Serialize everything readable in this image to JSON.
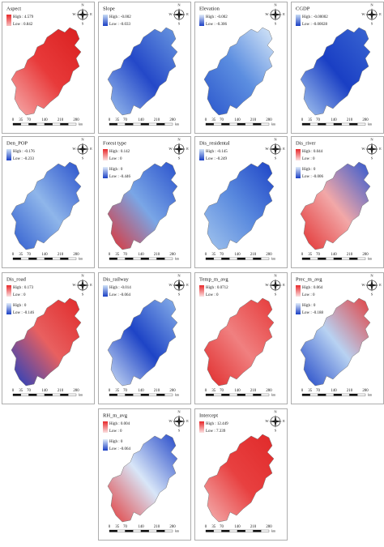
{
  "compass": [
    "N",
    "E",
    "S",
    "W"
  ],
  "scale_bar": {
    "labels": [
      "0",
      "35",
      "70",
      "140",
      "210",
      "280"
    ],
    "unit": "km"
  },
  "panels": [
    {
      "title": "Aspect",
      "legend": [
        {
          "high": "High : 4.579",
          "low": "Low : 0.842",
          "colors": [
            "#e8282a",
            "#f7c0c0"
          ]
        }
      ],
      "map_colors": [
        "#f6b0b0",
        "#e83a3a",
        "#d92020"
      ]
    },
    {
      "title": "Slope",
      "legend": [
        {
          "high": "High : -0.002",
          "low": "Low : -0.033",
          "colors": [
            "#c8dcf4",
            "#1a3fc4"
          ]
        }
      ],
      "map_colors": [
        "#9cc0ee",
        "#2448c8",
        "#6a98e0"
      ]
    },
    {
      "title": "Elevation",
      "legend": [
        {
          "high": "High : -0.002",
          "low": "Low : -0.306",
          "colors": [
            "#e4eefa",
            "#1a3fc4"
          ]
        }
      ],
      "map_colors": [
        "#2a55cc",
        "#5c8ee0",
        "#d8e8f8"
      ]
    },
    {
      "title": "CGDP",
      "legend": [
        {
          "high": "High : -0.00002",
          "low": "Low : -0.00028",
          "colors": [
            "#c8dcf4",
            "#1a3fc4"
          ]
        }
      ],
      "map_colors": [
        "#a8c8f0",
        "#1a3fc4",
        "#3a66d2"
      ]
    },
    {
      "title": "Den_POP",
      "legend": [
        {
          "high": "High : -0.176",
          "low": "Low : -0.233",
          "colors": [
            "#d0e2f6",
            "#1a3fc4"
          ]
        }
      ],
      "map_colors": [
        "#2f5ccf",
        "#8fb6ea",
        "#2a52cc"
      ]
    },
    {
      "title": "Forest type",
      "legend": [
        {
          "high": "High : 0.142",
          "low": "Low : 0",
          "colors": [
            "#e8282a",
            "#fbe0e0"
          ]
        },
        {
          "high": "High : 0",
          "low": "Low : -0.446",
          "colors": [
            "#e0ecfa",
            "#1a3fc4"
          ]
        }
      ],
      "map_colors": [
        "#e23030",
        "#7aa6e6",
        "#2a52cc"
      ]
    },
    {
      "title": "Dis_residental",
      "legend": [
        {
          "high": "High : -0.145",
          "low": "Low : -0.249",
          "colors": [
            "#d0e2f6",
            "#1a3fc4"
          ]
        }
      ],
      "map_colors": [
        "#a4c6ee",
        "#5a8ade",
        "#1e44c6"
      ]
    },
    {
      "title": "Dis_river",
      "legend": [
        {
          "high": "High : 0.044",
          "low": "Low : 0",
          "colors": [
            "#e8282a",
            "#fbe0e0"
          ]
        },
        {
          "high": "High : 0",
          "low": "Low : -0.006",
          "colors": [
            "#e0ecfa",
            "#1a3fc4"
          ]
        }
      ],
      "map_colors": [
        "#e23030",
        "#f2a8a8",
        "#3058d0"
      ]
    },
    {
      "title": "Dis_road",
      "legend": [
        {
          "high": "High : 0.173",
          "low": "Low : 0",
          "colors": [
            "#e8282a",
            "#fbe0e0"
          ]
        },
        {
          "high": "High : 0",
          "low": "Low : -0.146",
          "colors": [
            "#e0ecfa",
            "#1a3fc4"
          ]
        }
      ],
      "map_colors": [
        "#1a3fc4",
        "#e86060",
        "#e02a2a"
      ]
    },
    {
      "title": "Dis_railway",
      "legend": [
        {
          "high": "High : -0.014",
          "low": "Low : -0.064",
          "colors": [
            "#d0e2f6",
            "#1a3fc4"
          ]
        }
      ],
      "map_colors": [
        "#cfe0f6",
        "#1e44c6",
        "#8ab2ea"
      ]
    },
    {
      "title": "Temp_m_avg",
      "legend": [
        {
          "high": "High : 0.0712",
          "low": "Low : 0",
          "colors": [
            "#e8282a",
            "#fbe0e0"
          ]
        }
      ],
      "map_colors": [
        "#e02a2a",
        "#f08080",
        "#e53a3a"
      ]
    },
    {
      "title": "Prec_m_avg",
      "legend": [
        {
          "high": "High : 0.064",
          "low": "Low : 0",
          "colors": [
            "#e8282a",
            "#fbe0e0"
          ]
        },
        {
          "high": "High : 0",
          "low": "Low : -0.188",
          "colors": [
            "#e0ecfa",
            "#1a3fc4"
          ]
        }
      ],
      "map_colors": [
        "#1e44c6",
        "#b8d2f2",
        "#e24040"
      ]
    },
    {
      "title": "RH_m_avg",
      "legend": [
        {
          "high": "High : 0.004",
          "low": "Low : 0",
          "colors": [
            "#e8282a",
            "#fbe0e0"
          ]
        },
        {
          "high": "High : 0",
          "low": "Low : -0.064",
          "colors": [
            "#e0ecfa",
            "#1a3fc4"
          ]
        }
      ],
      "map_colors": [
        "#e23a3a",
        "#d8e6f8",
        "#2448c8"
      ]
    },
    {
      "title": "Intercept",
      "legend": [
        {
          "high": "High : 12.449",
          "low": "Low : 7.339",
          "colors": [
            "#e8282a",
            "#fbe0e0"
          ]
        }
      ],
      "map_colors": [
        "#f4b4b4",
        "#e84040",
        "#e02a2a"
      ]
    }
  ]
}
